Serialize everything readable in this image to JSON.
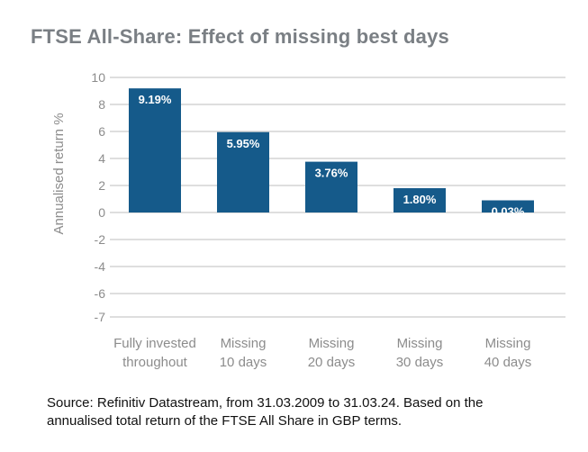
{
  "title": "FTSE All-Share: Effect of missing best days",
  "source_line1": "Source: Refinitiv Datastream, from 31.03.2009 to 31.03.24. Based on the",
  "source_line2": "annualised total return of the FTSE All Share in GBP terms.",
  "colors": {
    "bar": "#155a8a",
    "grid": "#bdbdbd",
    "axis_text": "#8c8c8c",
    "title": "#7a7f84"
  },
  "chart_data": {
    "type": "bar",
    "title": "FTSE All-Share: Effect of missing best days",
    "ylabel": "Annualised return %",
    "xlabel": "",
    "categories": [
      [
        "Fully invested",
        "throughout"
      ],
      [
        "Missing",
        "10 days"
      ],
      [
        "Missing",
        "20 days"
      ],
      [
        "Missing",
        "30 days"
      ],
      [
        "Missing",
        "40 days"
      ]
    ],
    "values": [
      9.19,
      5.95,
      3.76,
      1.8,
      0.03
    ],
    "data_labels": [
      "9.19%",
      "5.95%",
      "3.76%",
      "1.80%",
      "0.03%"
    ],
    "yticks": [
      10,
      8,
      6,
      4,
      2,
      0,
      -2,
      -4,
      -6,
      -7
    ],
    "ylim": [
      -7,
      10
    ],
    "grid": true,
    "legend": "none"
  }
}
